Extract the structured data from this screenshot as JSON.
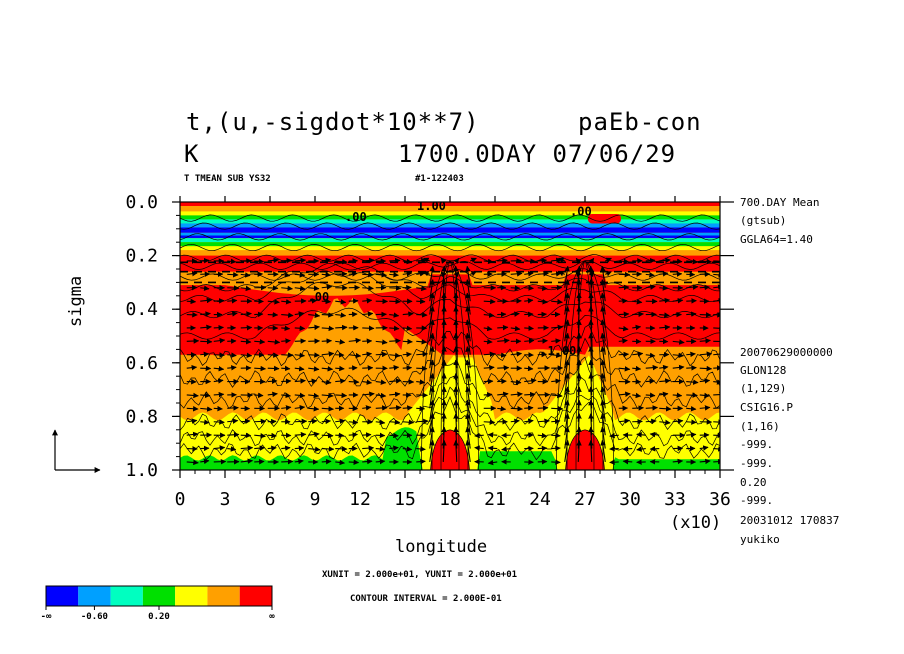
{
  "header": {
    "title_line1_left": "t,(u,-sigdot*10**7)",
    "title_line1_right": "paEb-con",
    "title_line2_left": "K",
    "title_line2_right": "1700.0DAY 07/06/29",
    "sub_left": "T TMEAN SUB YS32",
    "sub_right": "#1-122403"
  },
  "right_info": {
    "top": [
      "700.DAY Mean",
      "(gtsub)",
      "GGLA64=1.40"
    ],
    "bottom": [
      "20070629000000",
      "GLON128",
      "(1,129)",
      "CSIG16.P",
      "(1,16)",
      "-999.",
      "-999.",
      "0.20",
      "-999.",
      "20031012 170837",
      "yukiko"
    ]
  },
  "footer": {
    "units": "XUNIT = 2.000e+01, YUNIT = 2.000e+01",
    "contour_interval": "CONTOUR INTERVAL = 2.000E-01"
  },
  "colorbar": {
    "colors": [
      "#0000ff",
      "#00a0ff",
      "#00ffc0",
      "#00e000",
      "#ffff00",
      "#ffa000",
      "#ff0000"
    ],
    "labels": [
      "-∞",
      "-0.60",
      "0.20",
      "∞"
    ]
  },
  "chart_data": {
    "type": "contour",
    "xlabel": "longitude",
    "ylabel": "sigma",
    "x_multiplier": "(x10)",
    "xlim": [
      0,
      36
    ],
    "ylim": [
      0.0,
      1.0
    ],
    "y_reversed": true,
    "xticks": [
      "0",
      "3",
      "6",
      "9",
      "12",
      "15",
      "18",
      "21",
      "24",
      "27",
      "30",
      "33",
      "36"
    ],
    "yticks": [
      "0.0",
      "0.2",
      "0.4",
      "0.6",
      "0.8",
      "1.0"
    ],
    "contour_labels": [
      "1.00",
      ".00",
      ".00",
      "1.00",
      ".00"
    ],
    "overlay": "wind vectors (u, -sigdot*10**7)",
    "heating_centers_x": [
      18,
      27
    ]
  }
}
